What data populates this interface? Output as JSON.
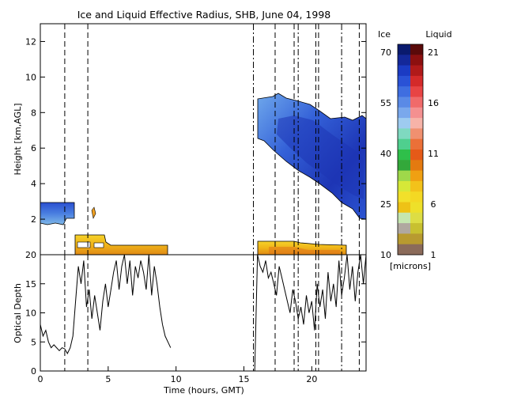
{
  "title": "Ice and Liquid Effective Radius, SHB, June 04, 1998",
  "colors": {
    "ice_mid": "#4a7fe0",
    "ice_dark": "#1d35b5",
    "liquid_main": "#f0b418",
    "liquid_edge": "#d96a12"
  },
  "chart_data": [
    {
      "type": "heatmap",
      "title": "Ice and Liquid Effective Radius, SHB, June 04, 1998",
      "xlabel": "",
      "ylabel": "Height [km,AGL]",
      "xlim": [
        0,
        24
      ],
      "ylim": [
        0,
        13
      ],
      "yticks": [
        2,
        4,
        6,
        8,
        10,
        12
      ],
      "x_tick_labels": [],
      "transition_times": [
        1.8,
        3.5,
        15.7,
        17.3,
        18.7,
        19.0,
        20.3,
        20.5,
        22.2,
        23.5
      ],
      "ice_cloud_regions": [
        {
          "x_start": 0.0,
          "x_end": 2.5,
          "bottom_km": 1.7,
          "top_km": 3.0
        },
        {
          "x_start": 15.8,
          "x_end": 24.0,
          "bottom_km_start": 6.0,
          "bottom_km_end": 2.5,
          "top_km_start": 8.5,
          "top_km_end": 7.8
        }
      ],
      "liquid_cloud_regions": [
        {
          "x_start": 2.5,
          "x_end": 9.6,
          "bottom_km": 0.2,
          "top_km": 1.3
        },
        {
          "x_start": 15.8,
          "x_end": 22.6,
          "bottom_km": 0.2,
          "top_km": 1.0
        }
      ],
      "colorbar": {
        "ice_title": "Ice",
        "liquid_title": "Liquid",
        "units": "[microns]",
        "ice_ticks": [
          "70",
          "55",
          "40",
          "25",
          "10"
        ],
        "liquid_ticks": [
          "21",
          "16",
          "11",
          "6",
          "1"
        ]
      }
    },
    {
      "type": "line",
      "title": "",
      "xlabel": "Time (hours, GMT)",
      "ylabel": "Optical Depth",
      "xlim": [
        0,
        24
      ],
      "ylim": [
        0,
        20
      ],
      "xticks": [
        0,
        5,
        10,
        15,
        20
      ],
      "yticks": [
        0,
        5,
        10,
        15,
        20
      ],
      "series": [
        {
          "x": [
            0.0,
            0.2,
            0.4,
            0.6,
            0.8,
            1.0,
            1.2,
            1.4,
            1.6,
            1.8,
            2.0,
            2.2,
            2.4,
            2.6,
            2.8,
            3.0,
            3.2,
            3.4,
            3.6,
            3.8,
            4.0,
            4.2,
            4.4,
            4.6,
            4.8,
            5.0,
            5.2,
            5.4,
            5.6,
            5.8,
            6.0,
            6.2,
            6.4,
            6.6,
            6.8,
            7.0,
            7.2,
            7.4,
            7.6,
            7.8,
            8.0,
            8.2,
            8.4,
            8.6,
            8.8,
            9.0,
            9.2,
            9.4,
            9.6
          ],
          "y": [
            8,
            6,
            7,
            5,
            4,
            4.5,
            4,
            3.5,
            4,
            3.8,
            3,
            4,
            6,
            12,
            18,
            15,
            19,
            11,
            14,
            9,
            13,
            10,
            7,
            12,
            15,
            11,
            14,
            17,
            19,
            14,
            18,
            20,
            15,
            19,
            13,
            18,
            16,
            19,
            17,
            14,
            20,
            13,
            18,
            15,
            11,
            8,
            6,
            5,
            4
          ]
        },
        {
          "x": [
            15.8,
            16.0,
            16.2,
            16.4,
            16.6,
            16.8,
            17.0,
            17.2,
            17.4,
            17.6,
            17.8,
            18.0,
            18.2,
            18.4,
            18.6,
            18.8,
            19.0,
            19.2,
            19.4,
            19.6,
            19.8,
            20.0,
            20.2,
            20.4,
            20.6,
            20.8,
            21.0,
            21.2,
            21.4,
            21.6,
            21.8,
            22.0,
            22.2,
            22.4,
            22.6,
            22.8,
            23.0,
            23.2,
            23.4,
            23.6,
            23.8,
            24.0
          ],
          "y": [
            0,
            20,
            18,
            17,
            19,
            16,
            17,
            15,
            13,
            18,
            16,
            14,
            12,
            10,
            14,
            12,
            9,
            11,
            8,
            13,
            10,
            12,
            7,
            15,
            11,
            14,
            9,
            17,
            12,
            15,
            11,
            19,
            13,
            16,
            20,
            14,
            18,
            12,
            17,
            20,
            15,
            20
          ]
        }
      ]
    }
  ]
}
